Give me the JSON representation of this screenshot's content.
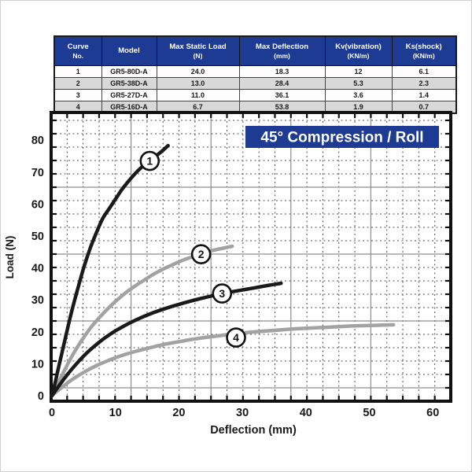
{
  "colors": {
    "navy": "#1e3b94",
    "curve_black": "#1a1a1a",
    "curve_gray": "#a2a2a2",
    "grid_dashed": "#4d4d4d",
    "grid_solid": "#8d8d8d",
    "axis": "#111111",
    "row_alt": "#d8d8d8"
  },
  "table": {
    "headers": [
      {
        "line1": "Curve",
        "line2": "No."
      },
      {
        "line1": "Model",
        "line2": ""
      },
      {
        "line1": "Max Static Load",
        "line2": "(N)"
      },
      {
        "line1": "Max Deflection",
        "line2": "(mm)"
      },
      {
        "line1": "Kv(vibration)",
        "line2": "(KN/m)"
      },
      {
        "line1": "Ks(shock)",
        "line2": "(KN/m)"
      }
    ],
    "rows": [
      [
        "1",
        "GR5-80D-A",
        "24.0",
        "18.3",
        "12",
        "6.1"
      ],
      [
        "2",
        "GR5-38D-A",
        "13.0",
        "28.4",
        "5.3",
        "2.3"
      ],
      [
        "3",
        "GR5-27D-A",
        "11.0",
        "36.1",
        "3.6",
        "1.4"
      ],
      [
        "4",
        "GR5-16D-A",
        "6.7",
        "53.8",
        "1.9",
        "0.7"
      ]
    ]
  },
  "chart_data": {
    "type": "line",
    "title": "45° Compression / Roll",
    "xlabel": "Deflection (mm)",
    "ylabel": "Load (N)",
    "xlim": [
      0,
      63
    ],
    "ylim": [
      0,
      89.5
    ],
    "xticks": [
      0,
      10,
      20,
      30,
      40,
      50,
      60
    ],
    "yticks": [
      0,
      10,
      20,
      30,
      40,
      50,
      60,
      70,
      80
    ],
    "grid": {
      "minor": "dashed",
      "major": "solid",
      "legend_position": "none"
    },
    "series": [
      {
        "name": "4",
        "model": "GR5-16D-A",
        "color": "gray",
        "label_at": [
          29,
          18.2
        ],
        "points": [
          [
            0,
            0
          ],
          [
            1,
            1.7
          ],
          [
            2,
            3.3
          ],
          [
            3,
            4.8
          ],
          [
            4,
            6.1
          ],
          [
            5,
            7.3
          ],
          [
            6,
            8.4
          ],
          [
            7,
            9.4
          ],
          [
            8,
            10.3
          ],
          [
            9,
            11.1
          ],
          [
            10,
            11.9
          ],
          [
            12,
            13.2
          ],
          [
            14,
            14.3
          ],
          [
            16,
            15.3
          ],
          [
            18,
            16.2
          ],
          [
            20,
            16.9
          ],
          [
            22,
            17.6
          ],
          [
            24,
            18.2
          ],
          [
            26,
            18.7
          ],
          [
            28,
            19.2
          ],
          [
            30,
            19.6
          ],
          [
            32,
            20.0
          ],
          [
            34,
            20.3
          ],
          [
            36,
            20.6
          ],
          [
            38,
            20.9
          ],
          [
            40,
            21.1
          ],
          [
            42,
            21.3
          ],
          [
            44,
            21.5
          ],
          [
            46,
            21.7
          ],
          [
            48,
            21.9
          ],
          [
            50,
            22.0
          ],
          [
            52,
            22.1
          ],
          [
            53.8,
            22.2
          ]
        ]
      },
      {
        "name": "2",
        "model": "GR5-38D-A",
        "color": "gray",
        "label_at": [
          23.5,
          44.3
        ],
        "points": [
          [
            0,
            0
          ],
          [
            1,
            4
          ],
          [
            2,
            8
          ],
          [
            3,
            11.8
          ],
          [
            4,
            15.2
          ],
          [
            5,
            18.2
          ],
          [
            6,
            21
          ],
          [
            7,
            23.4
          ],
          [
            8,
            25.6
          ],
          [
            9,
            27.6
          ],
          [
            10,
            29.5
          ],
          [
            11,
            31.2
          ],
          [
            12,
            32.8
          ],
          [
            13,
            34.2
          ],
          [
            14,
            35.5
          ],
          [
            15,
            36.8
          ],
          [
            16,
            38
          ],
          [
            17,
            39.1
          ],
          [
            18,
            40.1
          ],
          [
            19,
            41
          ],
          [
            20,
            41.9
          ],
          [
            21,
            42.7
          ],
          [
            22,
            43.4
          ],
          [
            23,
            44.1
          ],
          [
            24,
            44.7
          ],
          [
            25,
            45.3
          ],
          [
            26,
            45.8
          ],
          [
            27,
            46.2
          ],
          [
            28.4,
            46.8
          ]
        ]
      },
      {
        "name": "3",
        "model": "GR5-27D-A",
        "color": "black",
        "label_at": [
          26.8,
          32
        ],
        "points": [
          [
            0,
            0
          ],
          [
            1,
            2.8
          ],
          [
            2,
            5.5
          ],
          [
            3,
            8
          ],
          [
            4,
            10.3
          ],
          [
            5,
            12.4
          ],
          [
            6,
            14.3
          ],
          [
            7,
            16
          ],
          [
            8,
            17.6
          ],
          [
            9,
            19
          ],
          [
            10,
            20.3
          ],
          [
            12,
            22.5
          ],
          [
            14,
            24.4
          ],
          [
            16,
            26
          ],
          [
            18,
            27.4
          ],
          [
            20,
            28.6
          ],
          [
            22,
            29.7
          ],
          [
            24,
            30.7
          ],
          [
            26,
            31.6
          ],
          [
            28,
            32.4
          ],
          [
            30,
            33.1
          ],
          [
            32,
            33.8
          ],
          [
            34,
            34.5
          ],
          [
            36.1,
            35.2
          ]
        ]
      },
      {
        "name": "1",
        "model": "GR5-80D-A",
        "color": "black",
        "label_at": [
          15.4,
          73.5
        ],
        "points": [
          [
            0,
            0
          ],
          [
            0.5,
            4
          ],
          [
            1,
            8.5
          ],
          [
            2,
            17
          ],
          [
            3,
            25.5
          ],
          [
            4,
            33
          ],
          [
            5,
            40
          ],
          [
            6,
            46
          ],
          [
            7,
            51
          ],
          [
            8,
            55.5
          ],
          [
            9,
            58.5
          ],
          [
            10,
            61.5
          ],
          [
            11,
            64.5
          ],
          [
            12,
            67
          ],
          [
            13,
            69.3
          ],
          [
            14,
            71.3
          ],
          [
            15,
            73
          ],
          [
            16,
            74.5
          ],
          [
            17,
            76
          ],
          [
            18.3,
            78.3
          ]
        ]
      }
    ]
  }
}
